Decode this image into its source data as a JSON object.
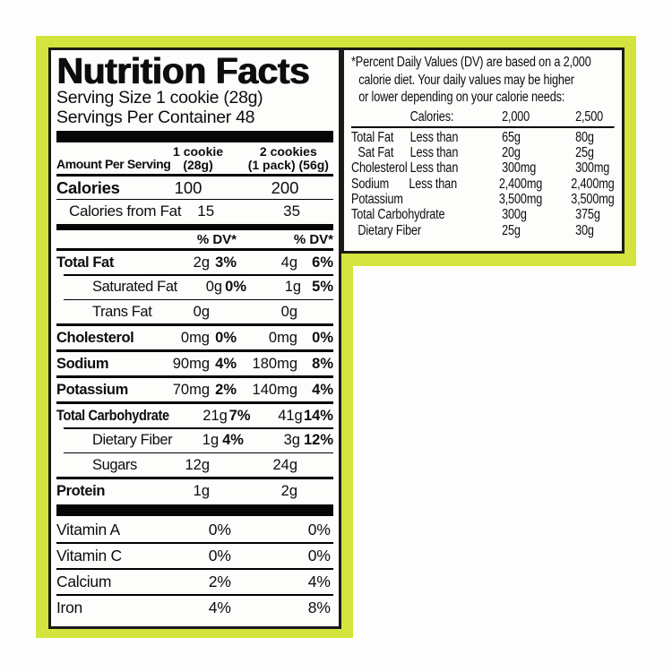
{
  "colors": {
    "frame": "#d4e43e",
    "panel_background": "#fdfdfb",
    "border": "#1b1b18",
    "text": "#0d0d0d"
  },
  "label": {
    "title": "Nutrition Facts",
    "serving_size": "Serving Size 1 cookie (28g)",
    "servings_per_container": "Servings Per Container 48",
    "columns_header": {
      "amount_per_serving": "Amount Per Serving",
      "col1_line1": "1 cookie",
      "col1_line2": "(28g)",
      "col2_line1": "2 cookies",
      "col2_line2": "(1 pack) (56g)"
    },
    "calories_rows": [
      {
        "label": "Calories",
        "v1": "100",
        "v2": "200"
      },
      {
        "label": "Calories from Fat",
        "v1": "15",
        "v2": "35"
      }
    ],
    "dv_header": "% DV*",
    "nutrients": [
      {
        "label": "Total Fat",
        "amt1": "2g",
        "dv1": "3%",
        "amt2": "4g",
        "dv2": "6%",
        "bold": true,
        "indent": false,
        "sep": "major"
      },
      {
        "label": "Saturated Fat",
        "amt1": "0g",
        "dv1": "0%",
        "amt2": "1g",
        "dv2": "5%",
        "bold": false,
        "indent": true,
        "sep": "minor"
      },
      {
        "label": "Trans Fat",
        "amt1": "0g",
        "dv1": "",
        "amt2": "0g",
        "dv2": "",
        "bold": false,
        "indent": true,
        "sep": "minor"
      },
      {
        "label": "Cholesterol",
        "amt1": "0mg",
        "dv1": "0%",
        "amt2": "0mg",
        "dv2": "0%",
        "bold": true,
        "indent": false,
        "sep": "major"
      },
      {
        "label": "Sodium",
        "amt1": "90mg",
        "dv1": "4%",
        "amt2": "180mg",
        "dv2": "8%",
        "bold": true,
        "indent": false,
        "sep": "major"
      },
      {
        "label": "Potassium",
        "amt1": "70mg",
        "dv1": "2%",
        "amt2": "140mg",
        "dv2": "4%",
        "bold": true,
        "indent": false,
        "sep": "major"
      },
      {
        "label": "Total Carbohydrate",
        "amt1": "21g",
        "dv1": "7%",
        "amt2": "41g",
        "dv2": "14%",
        "bold": true,
        "indent": false,
        "sep": "major"
      },
      {
        "label": "Dietary Fiber",
        "amt1": "1g",
        "dv1": "4%",
        "amt2": "3g",
        "dv2": "12%",
        "bold": false,
        "indent": true,
        "sep": "minor"
      },
      {
        "label": "Sugars",
        "amt1": "12g",
        "dv1": "",
        "amt2": "24g",
        "dv2": "",
        "bold": false,
        "indent": true,
        "sep": "minor"
      },
      {
        "label": "Protein",
        "amt1": "1g",
        "dv1": "",
        "amt2": "2g",
        "dv2": "",
        "bold": true,
        "indent": false,
        "sep": "major"
      }
    ],
    "vitamins": [
      {
        "label": "Vitamin A",
        "v1": "0%",
        "v2": "0%"
      },
      {
        "label": "Vitamin C",
        "v1": "0%",
        "v2": "0%"
      },
      {
        "label": "Calcium",
        "v1": "2%",
        "v2": "4%"
      },
      {
        "label": "Iron",
        "v1": "4%",
        "v2": "8%"
      }
    ]
  },
  "footnote": {
    "line1": "*Percent Daily Values (DV) are based on a 2,000",
    "line2": "calorie diet. Your daily values may be higher",
    "line3": "or lower depending on your calorie needs:",
    "header": {
      "calories": "Calories:",
      "c2000": "2,000",
      "c2500": "2,500"
    },
    "rows": [
      {
        "name": "Total Fat",
        "qual": "Less than",
        "v2000": "65g",
        "v2500": "80g",
        "indent": false
      },
      {
        "name": "Sat Fat",
        "qual": "Less than",
        "v2000": "20g",
        "v2500": "25g",
        "indent": true
      },
      {
        "name": "Cholesterol",
        "qual": "Less than",
        "v2000": "300mg",
        "v2500": "300mg",
        "indent": false
      },
      {
        "name": "Sodium",
        "qual": "Less than",
        "v2000": "2,400mg",
        "v2500": "2,400mg",
        "indent": false
      },
      {
        "name": "Potassium",
        "qual": "",
        "v2000": "3,500mg",
        "v2500": "3,500mg",
        "indent": false
      },
      {
        "name": "Total Carbohydrate",
        "qual": "",
        "v2000": "300g",
        "v2500": "375g",
        "indent": false
      },
      {
        "name": "Dietary Fiber",
        "qual": "",
        "v2000": "25g",
        "v2500": "30g",
        "indent": true
      }
    ]
  }
}
